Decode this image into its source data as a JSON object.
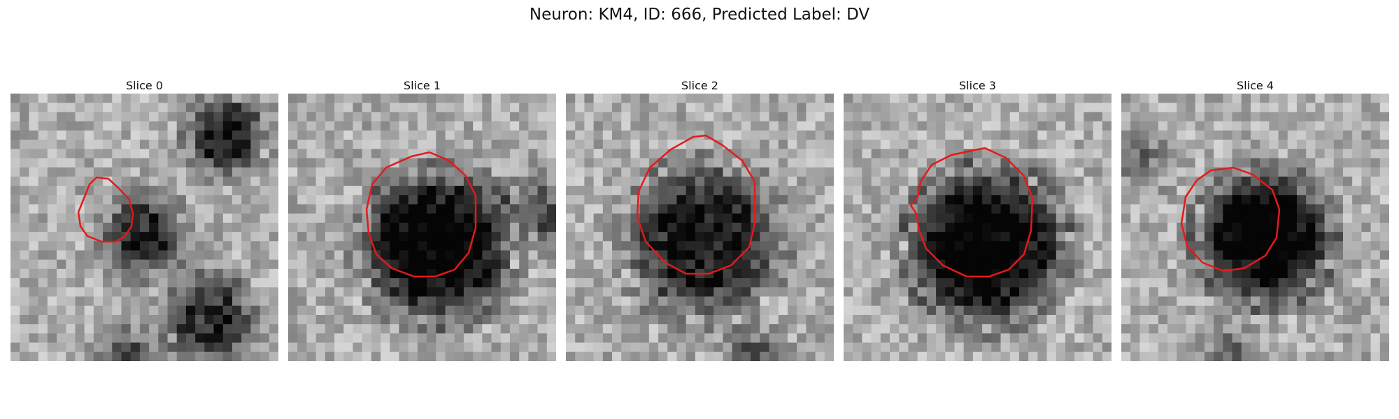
{
  "figure": {
    "title": "Neuron: KM4, ID: 666, Predicted Label: DV"
  },
  "colors": {
    "contour": "#e31a1c",
    "background": "#ffffff"
  },
  "panels": [
    {
      "title": "Slice 0"
    },
    {
      "title": "Slice 1"
    },
    {
      "title": "Slice 2"
    },
    {
      "title": "Slice 3"
    },
    {
      "title": "Slice 4"
    }
  ]
}
